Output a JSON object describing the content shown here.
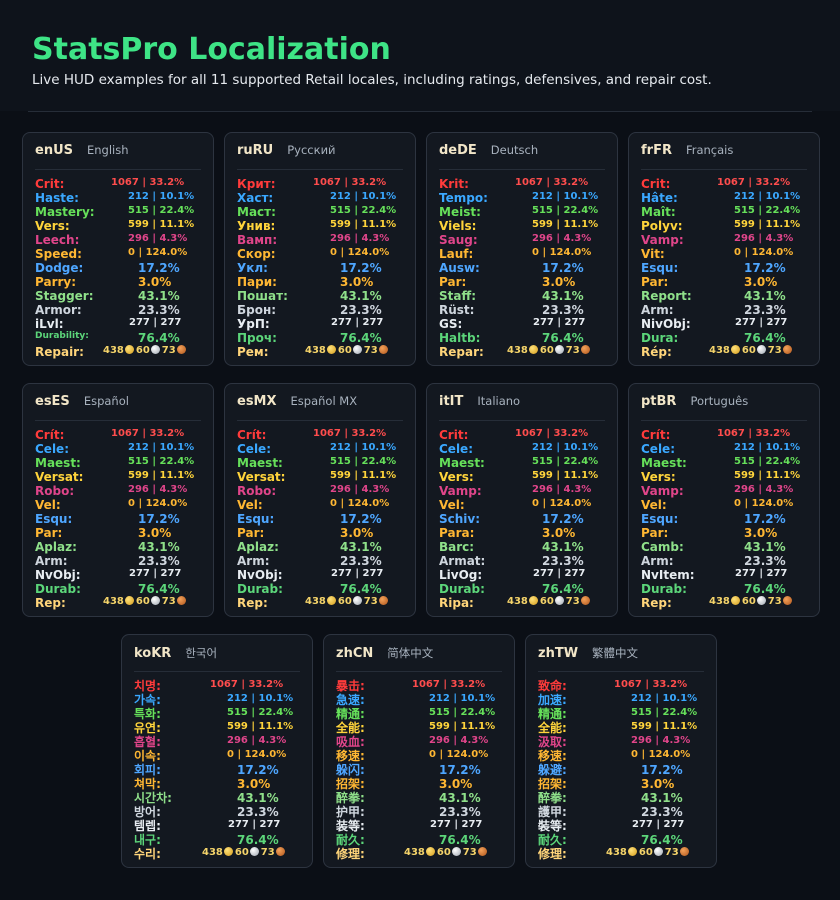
{
  "header": {
    "title": "StatsPro Localization",
    "subtitle": "Live HUD examples for all 11 supported Retail locales, including ratings, defensives, and repair cost."
  },
  "values": {
    "crit": "1067 | 33.2%",
    "haste": "212 | 10.1%",
    "mastery": "515 | 22.4%",
    "vers": "599 | 11.1%",
    "leech": "296 | 4.3%",
    "speed": "0 | 124.0%",
    "dodge": "17.2%",
    "parry": "3.0%",
    "stagger": "43.1%",
    "armor": "23.3%",
    "ilvl": "277 | 277",
    "durability": "76.4%",
    "repair_gold": "438",
    "repair_silver": "60",
    "repair_copper": "73"
  },
  "colors": {
    "crit": "#ff3b3b",
    "haste": "#3aa8ff",
    "mastery": "#66e05a",
    "vers": "#ffd43b",
    "leech": "#e0458a",
    "speed": "#ffb733",
    "dodge": "#4ea6ff",
    "parry": "#ffb733",
    "stagger": "#8fe08a",
    "armor": "#cfd6de",
    "ilvl": "#e8edf2",
    "durability": "#5cd67a",
    "repair": "#f5d46a"
  },
  "locales": [
    {
      "code": "enUS",
      "name": "English",
      "labels": [
        "Crit:",
        "Haste:",
        "Mastery:",
        "Vers:",
        "Leech:",
        "Speed:",
        "Dodge:",
        "Parry:",
        "Stagger:",
        "Armor:",
        "iLvl:",
        "Durability:",
        "Repair:"
      ]
    },
    {
      "code": "ruRU",
      "name": "Русский",
      "labels": [
        "Крит:",
        "Хаст:",
        "Маст:",
        "Унив:",
        "Вамп:",
        "Скор:",
        "Укл:",
        "Пари:",
        "Пошат:",
        "Брон:",
        "УрП:",
        "Проч:",
        "Рем:"
      ]
    },
    {
      "code": "deDE",
      "name": "Deutsch",
      "labels": [
        "Krit:",
        "Tempo:",
        "Meist:",
        "Viels:",
        "Saug:",
        "Lauf:",
        "Ausw:",
        "Par:",
        "Staff:",
        "Rüst:",
        "GS:",
        "Haltb:",
        "Repar:"
      ]
    },
    {
      "code": "frFR",
      "name": "Français",
      "labels": [
        "Crit:",
        "Hâte:",
        "Maît:",
        "Polyv:",
        "Vamp:",
        "Vit:",
        "Esqu:",
        "Par:",
        "Report:",
        "Arm:",
        "NivObj:",
        "Dura:",
        "Rép:"
      ]
    },
    {
      "code": "esES",
      "name": "Español",
      "labels": [
        "Crít:",
        "Cele:",
        "Maest:",
        "Versat:",
        "Robo:",
        "Vel:",
        "Esqu:",
        "Par:",
        "Aplaz:",
        "Arm:",
        "NvObj:",
        "Durab:",
        "Rep:"
      ]
    },
    {
      "code": "esMX",
      "name": "Español MX",
      "labels": [
        "Crít:",
        "Cele:",
        "Maest:",
        "Versat:",
        "Robo:",
        "Vel:",
        "Esqu:",
        "Par:",
        "Aplaz:",
        "Arm:",
        "NvObj:",
        "Durab:",
        "Rep:"
      ]
    },
    {
      "code": "itIT",
      "name": "Italiano",
      "labels": [
        "Crit:",
        "Cele:",
        "Maest:",
        "Vers:",
        "Vamp:",
        "Vel:",
        "Schiv:",
        "Para:",
        "Barc:",
        "Armat:",
        "LivOg:",
        "Durab:",
        "Ripa:"
      ]
    },
    {
      "code": "ptBR",
      "name": "Português",
      "labels": [
        "Crít:",
        "Cele:",
        "Maest:",
        "Vers:",
        "Vamp:",
        "Vel:",
        "Esqu:",
        "Par:",
        "Camb:",
        "Arm:",
        "NvItem:",
        "Durab:",
        "Rep:"
      ]
    },
    {
      "code": "koKR",
      "name": "한국어",
      "labels": [
        "치명:",
        "가속:",
        "특화:",
        "유연:",
        "흡혈:",
        "이속:",
        "회피:",
        "쳐막:",
        "시간차:",
        "방어:",
        "템렙:",
        "내구:",
        "수리:"
      ]
    },
    {
      "code": "zhCN",
      "name": "简体中文",
      "labels": [
        "暴击:",
        "急速:",
        "精通:",
        "全能:",
        "吸血:",
        "移速:",
        "躲闪:",
        "招架:",
        "醉拳:",
        "护甲:",
        "装等:",
        "耐久:",
        "修理:"
      ]
    },
    {
      "code": "zhTW",
      "name": "繁體中文",
      "labels": [
        "致命:",
        "加速:",
        "精通:",
        "全能:",
        "汲取:",
        "移速:",
        "躲避:",
        "招架:",
        "醉拳:",
        "護甲:",
        "裝等:",
        "耐久:",
        "修理:"
      ]
    }
  ]
}
